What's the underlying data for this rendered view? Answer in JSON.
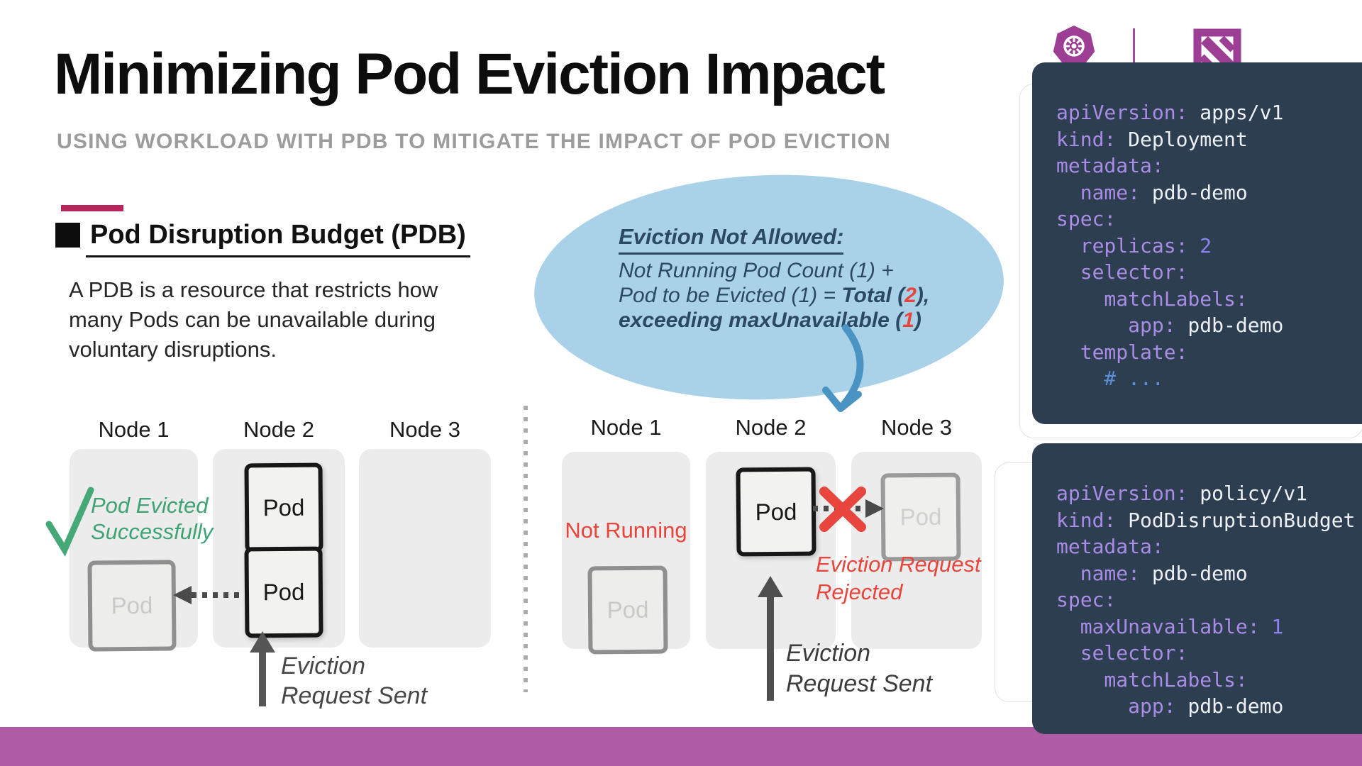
{
  "header": {
    "title": "Minimizing Pod Eviction Impact",
    "subtitle": "USING WORKLOAD WITH PDB TO MITIGATE THE IMPACT OF POD EVICTION"
  },
  "pdb_section": {
    "heading": "Pod Disruption Budget (PDB)",
    "description_line1": "A PDB is a resource that restricts how",
    "description_line2": "many Pods can be unavailable during",
    "description_line3": "voluntary disruptions."
  },
  "callout": {
    "heading": "Eviction Not Allowed:",
    "line1": "Not Running Pod Count (1) +",
    "line2_normal": "Pod to be Evicted (1) = ",
    "line2_bold_pre": "Total (",
    "line2_red": "2",
    "line2_bold_post": "),",
    "line3_bold_pre": "exceeding maxUnavailable (",
    "line3_red": "1",
    "line3_bold_post": ")"
  },
  "left_diagram": {
    "node1": "Node 1",
    "node2": "Node 2",
    "node3": "Node 3",
    "pod": "Pod",
    "evicted_line1": "Pod Evicted",
    "evicted_line2": "Successfully",
    "sent_line1": "Eviction",
    "sent_line2": "Request Sent"
  },
  "right_diagram": {
    "node1": "Node 1",
    "node2": "Node 2",
    "node3": "Node 3",
    "pod": "Pod",
    "not_running": "Not Running",
    "rejected_line1": "Eviction Request",
    "rejected_line2": "Rejected",
    "sent_line1": "Eviction",
    "sent_line2": "Request Sent"
  },
  "code_blocks": {
    "deployment": {
      "lines": [
        [
          {
            "c": "key",
            "t": "apiVersion:"
          },
          {
            "c": "val",
            "t": " apps/v1"
          }
        ],
        [
          {
            "c": "key",
            "t": "kind:"
          },
          {
            "c": "val",
            "t": " Deployment"
          }
        ],
        [
          {
            "c": "key",
            "t": "metadata:"
          }
        ],
        [
          {
            "c": "key",
            "t": "  name:"
          },
          {
            "c": "val",
            "t": " pdb-demo"
          }
        ],
        [
          {
            "c": "key",
            "t": "spec:"
          }
        ],
        [
          {
            "c": "key",
            "t": "  replicas:"
          },
          {
            "c": "num",
            "t": " 2"
          }
        ],
        [
          {
            "c": "key",
            "t": "  selector:"
          }
        ],
        [
          {
            "c": "key",
            "t": "    matchLabels:"
          }
        ],
        [
          {
            "c": "key",
            "t": "      app:"
          },
          {
            "c": "val",
            "t": " pdb-demo"
          }
        ],
        [
          {
            "c": "key",
            "t": "  template:"
          }
        ],
        [
          {
            "c": "com",
            "t": "    # ..."
          }
        ]
      ]
    },
    "pdb": {
      "lines": [
        [
          {
            "c": "key",
            "t": "apiVersion:"
          },
          {
            "c": "val",
            "t": " policy/v1"
          }
        ],
        [
          {
            "c": "key",
            "t": "kind:"
          },
          {
            "c": "val",
            "t": " PodDisruptionBudget"
          }
        ],
        [
          {
            "c": "key",
            "t": "metadata:"
          }
        ],
        [
          {
            "c": "key",
            "t": "  name:"
          },
          {
            "c": "val",
            "t": " pdb-demo"
          }
        ],
        [
          {
            "c": "key",
            "t": "spec:"
          }
        ],
        [
          {
            "c": "key",
            "t": "  maxUnavailable:"
          },
          {
            "c": "num",
            "t": " 1"
          }
        ],
        [
          {
            "c": "key",
            "t": "  selector:"
          }
        ],
        [
          {
            "c": "key",
            "t": "    matchLabels:"
          }
        ],
        [
          {
            "c": "key",
            "t": "      app:"
          },
          {
            "c": "val",
            "t": " pdb-demo"
          }
        ]
      ]
    }
  },
  "colors": {
    "accent_pink": "#b6255c",
    "footer_purple": "#b05ba6",
    "callout_blue": "#a9d1e8",
    "callout_navy": "#2c4963",
    "error_red": "#e8453c",
    "success_green": "#3fa474",
    "brand_purple": "#9c3e94",
    "code_background": "#2d3e50"
  }
}
